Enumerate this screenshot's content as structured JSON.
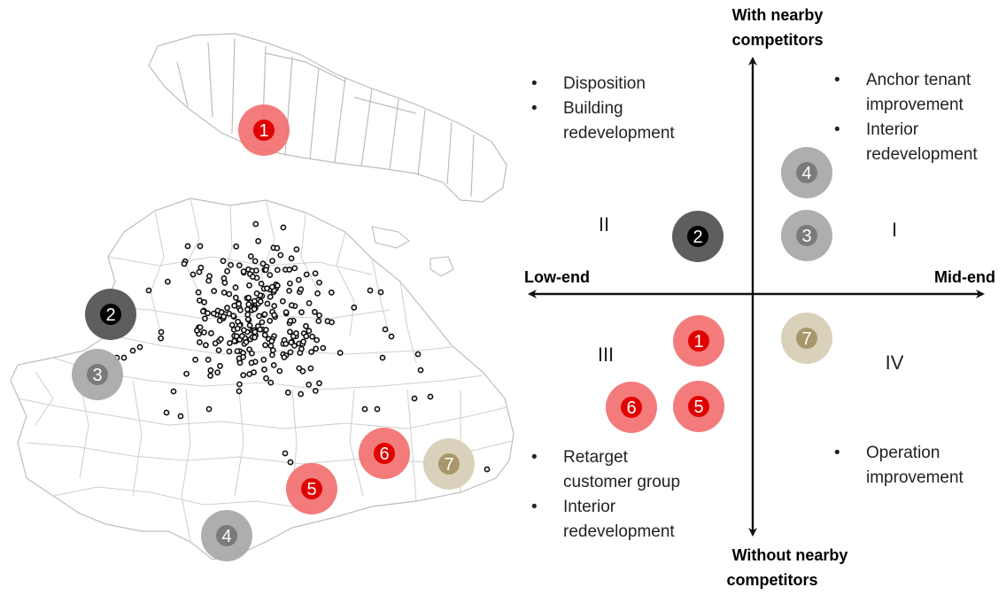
{
  "axes": {
    "top": [
      "With nearby",
      "competitors"
    ],
    "bottom": [
      "Without nearby",
      "competitors"
    ],
    "left": "Low-end",
    "right": "Mid-end"
  },
  "quadrants": {
    "q1": "I",
    "q2": "II",
    "q3": "III",
    "q4": "IV"
  },
  "strategies": {
    "q2": [
      [
        "Disposition"
      ],
      [
        "Building",
        "redevelopment"
      ]
    ],
    "q1": [
      [
        "Anchor tenant",
        "improvement"
      ],
      [
        "Interior",
        "redevelopment"
      ]
    ],
    "q3": [
      [
        "Retarget",
        "customer group"
      ],
      [
        "Interior",
        "redevelopment"
      ]
    ],
    "q4": [
      [
        "Operation",
        "improvement"
      ]
    ]
  },
  "bullet_char": "•",
  "colors": {
    "red": "#f26d6d",
    "dark": "#555555",
    "gray": "#aaaaaa",
    "beige": "#d8cfb6",
    "map_line": "#c8c8c8"
  },
  "quadrant_markers": [
    {
      "id": "2",
      "color": "dark"
    },
    {
      "id": "4",
      "color": "gray"
    },
    {
      "id": "3",
      "color": "gray"
    },
    {
      "id": "1",
      "color": "red"
    },
    {
      "id": "7",
      "color": "beige"
    },
    {
      "id": "6",
      "color": "red"
    },
    {
      "id": "5",
      "color": "red"
    }
  ],
  "map_markers": [
    {
      "id": "1",
      "color": "red"
    },
    {
      "id": "2",
      "color": "dark"
    },
    {
      "id": "3",
      "color": "gray"
    },
    {
      "id": "4",
      "color": "gray"
    },
    {
      "id": "5",
      "color": "red"
    },
    {
      "id": "6",
      "color": "red"
    },
    {
      "id": "7",
      "color": "beige"
    }
  ]
}
